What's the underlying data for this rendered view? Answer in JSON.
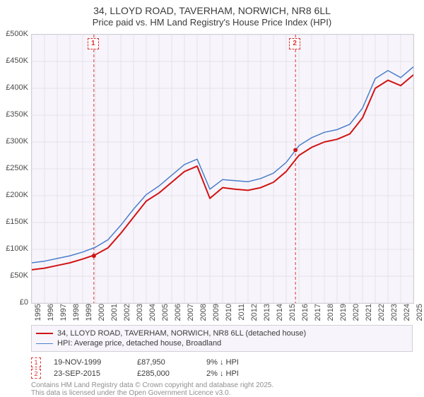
{
  "title_line1": "34, LLOYD ROAD, TAVERHAM, NORWICH, NR8 6LL",
  "title_line2": "Price paid vs. HM Land Registry's House Price Index (HPI)",
  "chart": {
    "type": "line",
    "background_color": "#f7f5fb",
    "grid_color": "#e4e2ea",
    "border_color": "#d0cfd6",
    "ylim": [
      0,
      500000
    ],
    "ytick_step": 50000,
    "ytick_labels": [
      "£0",
      "£50K",
      "£100K",
      "£150K",
      "£200K",
      "£250K",
      "£300K",
      "£350K",
      "£400K",
      "£450K",
      "£500K"
    ],
    "xlim": [
      1995,
      2025
    ],
    "xtick_step": 1,
    "xtick_labels": [
      "1995",
      "1996",
      "1997",
      "1998",
      "1999",
      "2000",
      "2001",
      "2002",
      "2003",
      "2004",
      "2005",
      "2006",
      "2007",
      "2008",
      "2009",
      "2010",
      "2011",
      "2012",
      "2013",
      "2014",
      "2015",
      "2016",
      "2017",
      "2018",
      "2019",
      "2020",
      "2021",
      "2022",
      "2023",
      "2024",
      "2025"
    ],
    "label_fontsize": 11,
    "series": [
      {
        "name": "34, LLOYD ROAD, TAVERHAM, NORWICH, NR8 6LL (detached house)",
        "color": "#d11414",
        "line_width": 2,
        "x": [
          1995,
          1996,
          1997,
          1998,
          1999,
          2000,
          2001,
          2002,
          2003,
          2004,
          2005,
          2006,
          2007,
          2008,
          2009,
          2010,
          2011,
          2012,
          2013,
          2014,
          2015,
          2016,
          2017,
          2018,
          2019,
          2020,
          2021,
          2022,
          2023,
          2024,
          2025
        ],
        "y": [
          62000,
          65000,
          70000,
          75000,
          82000,
          90000,
          103000,
          130000,
          160000,
          190000,
          205000,
          225000,
          245000,
          255000,
          195000,
          215000,
          212000,
          210000,
          215000,
          225000,
          245000,
          275000,
          290000,
          300000,
          305000,
          315000,
          345000,
          400000,
          415000,
          405000,
          425000
        ]
      },
      {
        "name": "HPI: Average price, detached house, Broadland",
        "color": "#4a7ecb",
        "line_width": 1.5,
        "x": [
          1995,
          1996,
          1997,
          1998,
          1999,
          2000,
          2001,
          2002,
          2003,
          2004,
          2005,
          2006,
          2007,
          2008,
          2009,
          2010,
          2011,
          2012,
          2013,
          2014,
          2015,
          2016,
          2017,
          2018,
          2019,
          2020,
          2021,
          2022,
          2023,
          2024,
          2025
        ],
        "y": [
          75000,
          78000,
          83000,
          88000,
          95000,
          104000,
          118000,
          145000,
          175000,
          202000,
          218000,
          238000,
          258000,
          268000,
          212000,
          230000,
          228000,
          226000,
          232000,
          242000,
          262000,
          293000,
          308000,
          318000,
          323000,
          333000,
          363000,
          418000,
          433000,
          420000,
          440000
        ]
      }
    ],
    "vlines": [
      {
        "x": 1999.88,
        "color": "#d33",
        "dash": "4,3",
        "width": 1
      },
      {
        "x": 2015.73,
        "color": "#d33",
        "dash": "4,3",
        "width": 1
      }
    ],
    "markers": [
      {
        "id": 1,
        "label": "1",
        "x": 1999.88
      },
      {
        "id": 2,
        "label": "2",
        "x": 2015.73
      }
    ],
    "sale_points": [
      {
        "x": 1999.88,
        "y": 87950,
        "color": "#d11414",
        "radius": 3
      },
      {
        "x": 2015.73,
        "y": 285000,
        "color": "#d11414",
        "radius": 3
      }
    ]
  },
  "legend": {
    "rows": [
      {
        "color": "#d11414",
        "width": 2,
        "label": "34, LLOYD ROAD, TAVERHAM, NORWICH, NR8 6LL (detached house)"
      },
      {
        "color": "#4a7ecb",
        "width": 1.5,
        "label": "HPI: Average price, detached house, Broadland"
      }
    ]
  },
  "events": [
    {
      "marker": "1",
      "date": "19-NOV-1999",
      "price": "£87,950",
      "diff": "9% ↓ HPI"
    },
    {
      "marker": "2",
      "date": "23-SEP-2015",
      "price": "£285,000",
      "diff": "2% ↓ HPI"
    }
  ],
  "footnote_line1": "Contains HM Land Registry data © Crown copyright and database right 2025.",
  "footnote_line2": "This data is licensed under the Open Government Licence v3.0."
}
